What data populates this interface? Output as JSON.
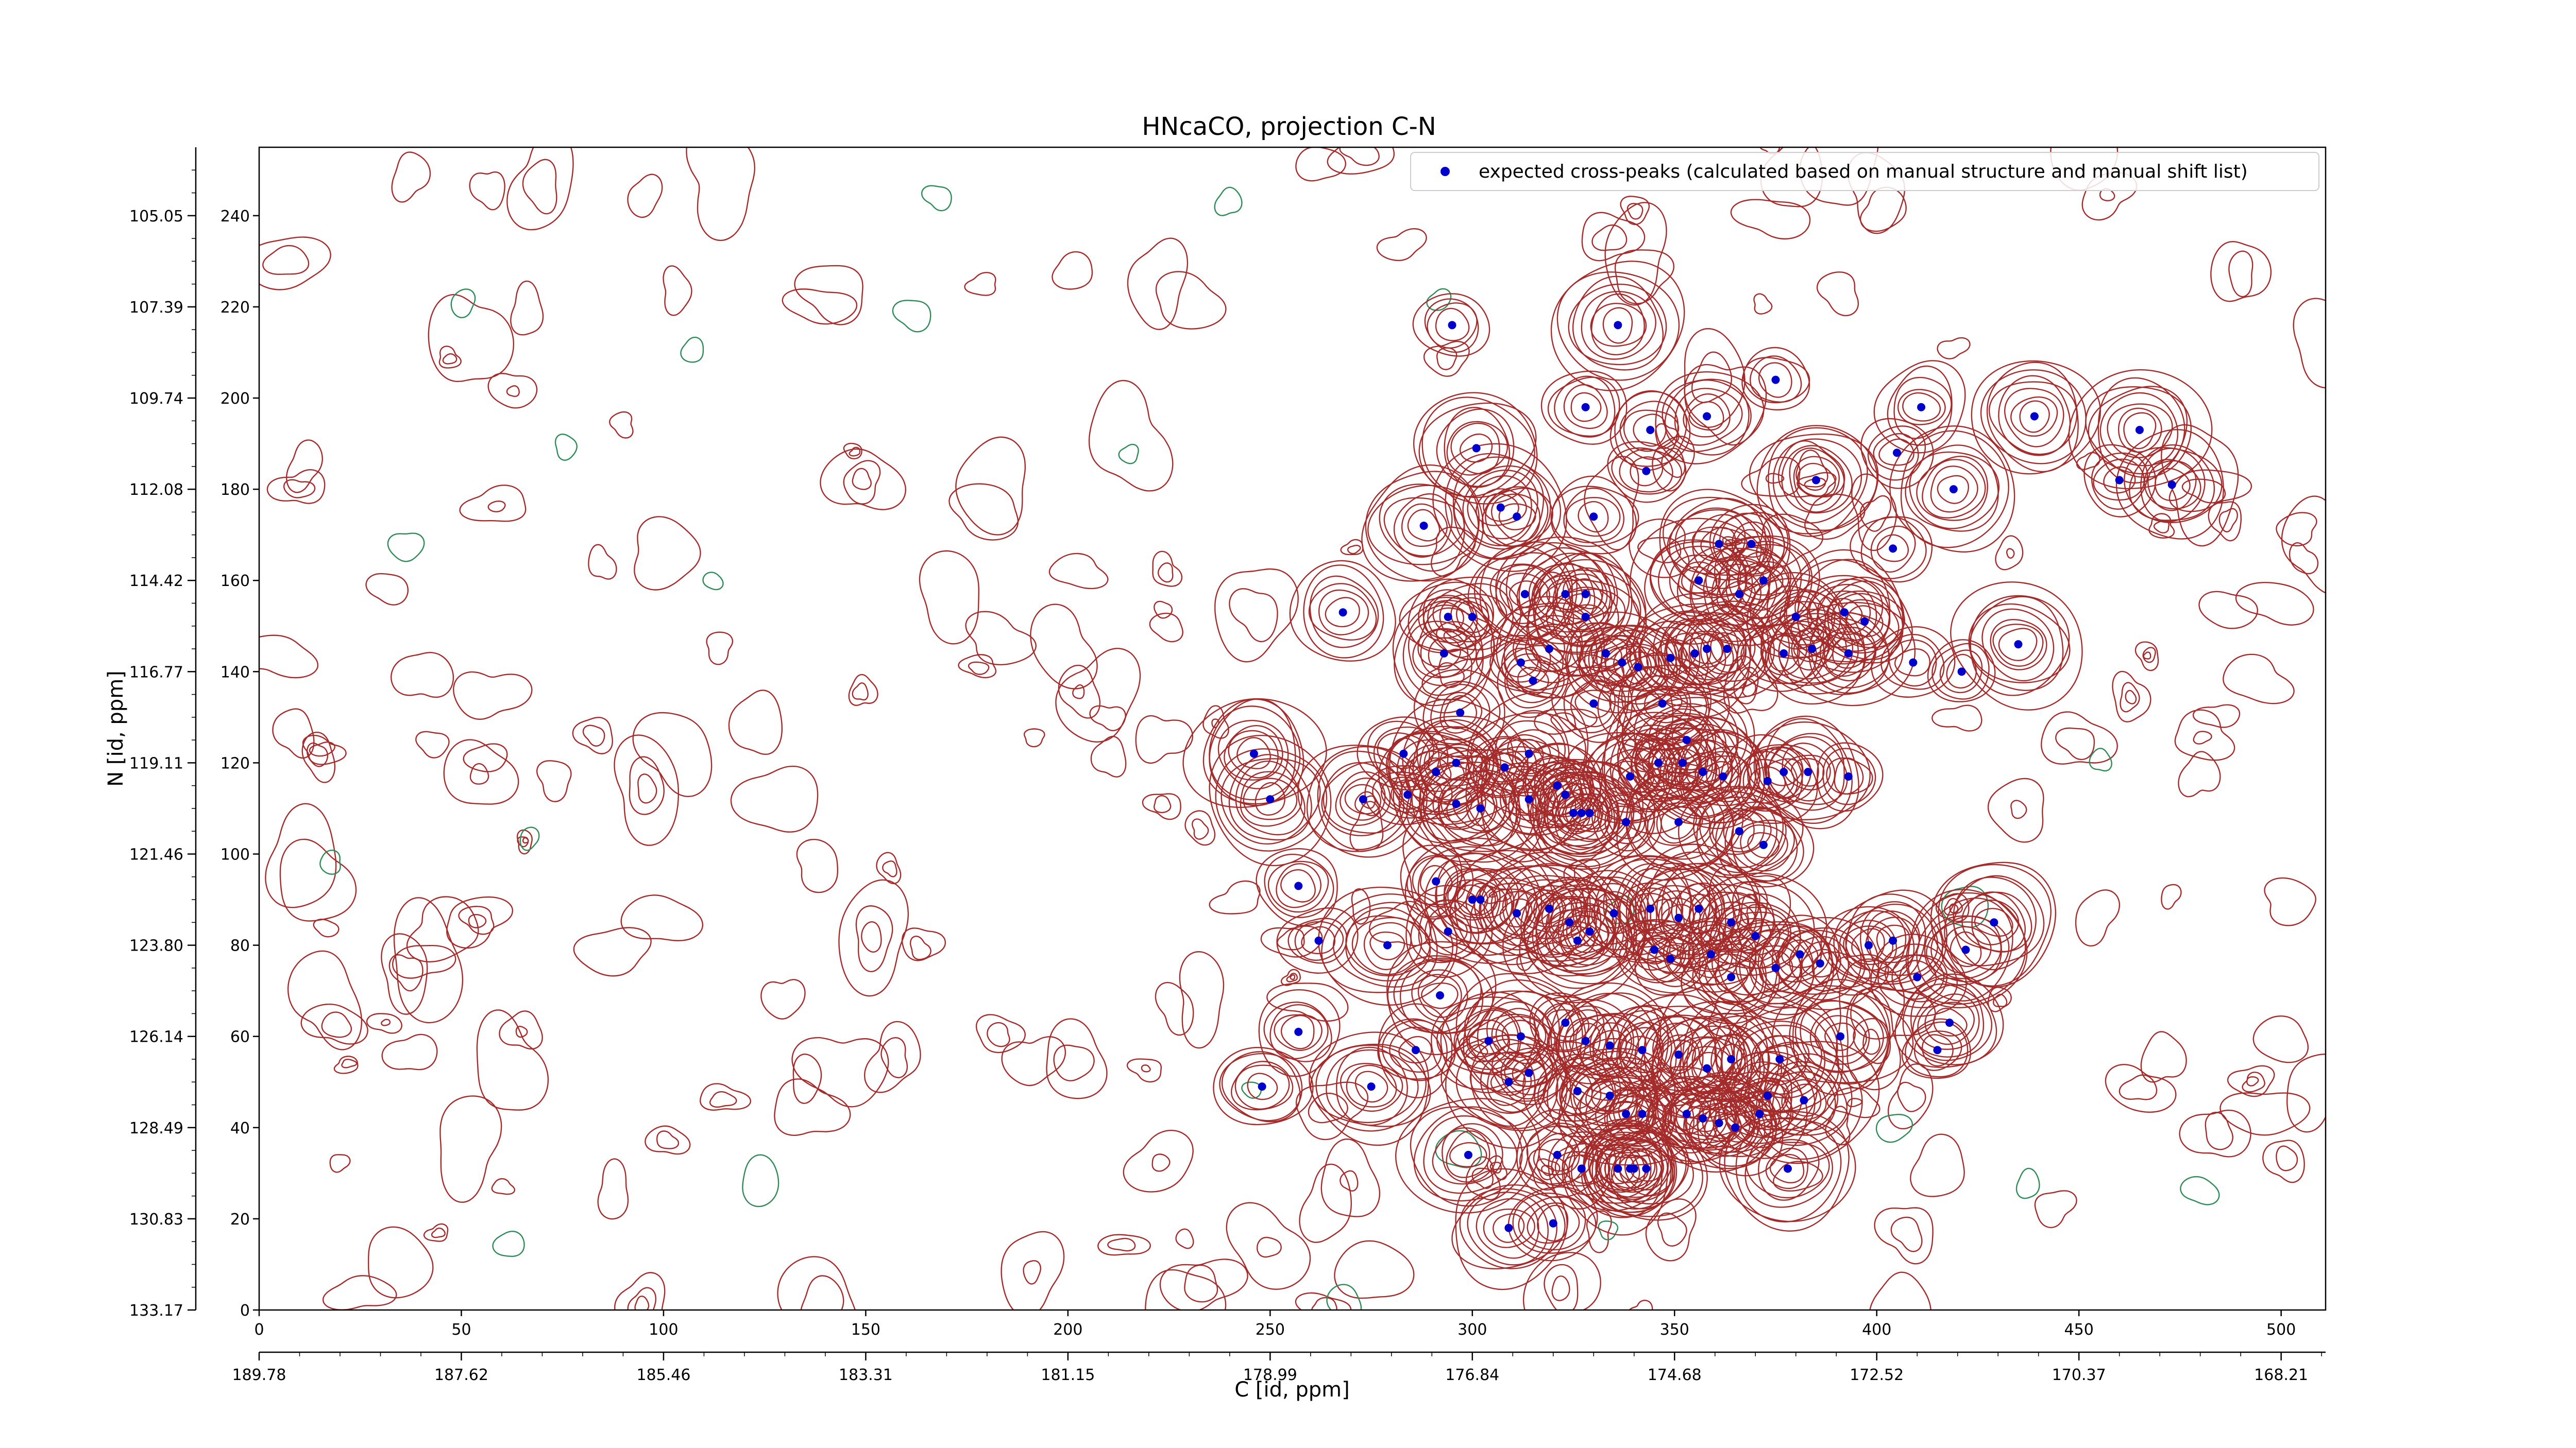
{
  "chart_data": {
    "type": "scatter",
    "title": "HNcaCO, projection C-N",
    "xlabel": "C [id, ppm]",
    "ylabel": "N [id, ppm]",
    "x_index_ticks": [
      0,
      50,
      100,
      150,
      200,
      250,
      300,
      350,
      400,
      450,
      500
    ],
    "x_ppm_ticks": [
      "189.78",
      "187.62",
      "185.46",
      "183.31",
      "181.15",
      "178.99",
      "176.84",
      "174.68",
      "172.52",
      "170.37",
      "168.21"
    ],
    "y_index_ticks": [
      0,
      20,
      40,
      60,
      80,
      100,
      120,
      140,
      160,
      180,
      200,
      220,
      240
    ],
    "y_ppm_ticks": [
      "133.17",
      "130.83",
      "128.49",
      "126.14",
      "123.80",
      "121.46",
      "119.11",
      "116.77",
      "114.42",
      "112.08",
      "109.74",
      "107.39",
      "105.05"
    ],
    "xlim": [
      0,
      511
    ],
    "ylim": [
      0,
      255
    ],
    "legend": {
      "label": "expected cross-peaks (calculated based on manual structure and manual shift list)",
      "placement": "top-right",
      "marker_color": "#0000cc"
    },
    "contour_colors": {
      "positive": "#a52a2a",
      "negative": "#2e8b57"
    },
    "series": [
      {
        "name": "expected cross-peaks (calculated based on manual structure and manual shift list)",
        "points": [
          [
            295,
            216
          ],
          [
            336,
            216
          ],
          [
            328,
            198
          ],
          [
            375,
            204
          ],
          [
            411,
            198
          ],
          [
            439,
            196
          ],
          [
            465,
            193
          ],
          [
            301,
            189
          ],
          [
            344,
            193
          ],
          [
            358,
            196
          ],
          [
            343,
            184
          ],
          [
            405,
            188
          ],
          [
            385,
            182
          ],
          [
            419,
            180
          ],
          [
            460,
            182
          ],
          [
            473,
            181
          ],
          [
            288,
            172
          ],
          [
            307,
            176
          ],
          [
            311,
            174
          ],
          [
            330,
            174
          ],
          [
            361,
            168
          ],
          [
            369,
            168
          ],
          [
            404,
            167
          ],
          [
            313,
            157
          ],
          [
            323,
            157
          ],
          [
            328,
            157
          ],
          [
            356,
            160
          ],
          [
            366,
            157
          ],
          [
            372,
            160
          ],
          [
            268,
            153
          ],
          [
            294,
            152
          ],
          [
            300,
            152
          ],
          [
            328,
            152
          ],
          [
            380,
            152
          ],
          [
            392,
            153
          ],
          [
            397,
            151
          ],
          [
            312,
            142
          ],
          [
            319,
            145
          ],
          [
            333,
            144
          ],
          [
            337,
            142
          ],
          [
            341,
            141
          ],
          [
            349,
            143
          ],
          [
            355,
            144
          ],
          [
            358,
            145
          ],
          [
            363,
            145
          ],
          [
            377,
            144
          ],
          [
            384,
            145
          ],
          [
            393,
            144
          ],
          [
            409,
            142
          ],
          [
            421,
            140
          ],
          [
            435,
            146
          ],
          [
            297,
            131
          ],
          [
            330,
            133
          ],
          [
            347,
            133
          ],
          [
            315,
            138
          ],
          [
            293,
            144
          ],
          [
            246,
            122
          ],
          [
            283,
            122
          ],
          [
            291,
            118
          ],
          [
            296,
            120
          ],
          [
            308,
            119
          ],
          [
            314,
            122
          ],
          [
            339,
            117
          ],
          [
            346,
            120
          ],
          [
            352,
            120
          ],
          [
            353,
            125
          ],
          [
            357,
            118
          ],
          [
            362,
            117
          ],
          [
            373,
            116
          ],
          [
            377,
            118
          ],
          [
            383,
            118
          ],
          [
            393,
            117
          ],
          [
            250,
            112
          ],
          [
            273,
            112
          ],
          [
            284,
            113
          ],
          [
            296,
            111
          ],
          [
            302,
            110
          ],
          [
            314,
            112
          ],
          [
            321,
            115
          ],
          [
            323,
            113
          ],
          [
            325,
            109
          ],
          [
            327,
            109
          ],
          [
            329,
            109
          ],
          [
            338,
            107
          ],
          [
            351,
            107
          ],
          [
            366,
            105
          ],
          [
            372,
            102
          ],
          [
            257,
            93
          ],
          [
            291,
            94
          ],
          [
            300,
            90
          ],
          [
            302,
            90
          ],
          [
            311,
            87
          ],
          [
            319,
            88
          ],
          [
            324,
            85
          ],
          [
            329,
            83
          ],
          [
            335,
            87
          ],
          [
            344,
            88
          ],
          [
            351,
            86
          ],
          [
            356,
            88
          ],
          [
            364,
            85
          ],
          [
            370,
            82
          ],
          [
            381,
            78
          ],
          [
            262,
            81
          ],
          [
            279,
            80
          ],
          [
            294,
            83
          ],
          [
            326,
            81
          ],
          [
            345,
            79
          ],
          [
            349,
            77
          ],
          [
            359,
            78
          ],
          [
            364,
            73
          ],
          [
            375,
            75
          ],
          [
            386,
            76
          ],
          [
            398,
            80
          ],
          [
            404,
            81
          ],
          [
            410,
            73
          ],
          [
            422,
            79
          ],
          [
            429,
            85
          ],
          [
            257,
            61
          ],
          [
            286,
            57
          ],
          [
            292,
            69
          ],
          [
            304,
            59
          ],
          [
            312,
            60
          ],
          [
            323,
            63
          ],
          [
            328,
            59
          ],
          [
            334,
            58
          ],
          [
            342,
            57
          ],
          [
            351,
            56
          ],
          [
            358,
            53
          ],
          [
            364,
            55
          ],
          [
            376,
            55
          ],
          [
            391,
            60
          ],
          [
            415,
            57
          ],
          [
            418,
            63
          ],
          [
            248,
            49
          ],
          [
            275,
            49
          ],
          [
            309,
            50
          ],
          [
            314,
            52
          ],
          [
            326,
            48
          ],
          [
            334,
            47
          ],
          [
            338,
            43
          ],
          [
            342,
            43
          ],
          [
            353,
            43
          ],
          [
            357,
            42
          ],
          [
            361,
            41
          ],
          [
            365,
            40
          ],
          [
            371,
            43
          ],
          [
            373,
            47
          ],
          [
            382,
            46
          ],
          [
            299,
            34
          ],
          [
            321,
            34
          ],
          [
            327,
            31
          ],
          [
            336,
            31
          ],
          [
            339,
            31
          ],
          [
            340,
            31
          ],
          [
            343,
            31
          ],
          [
            378,
            31
          ],
          [
            309,
            18
          ],
          [
            320,
            19
          ]
        ]
      }
    ]
  }
}
